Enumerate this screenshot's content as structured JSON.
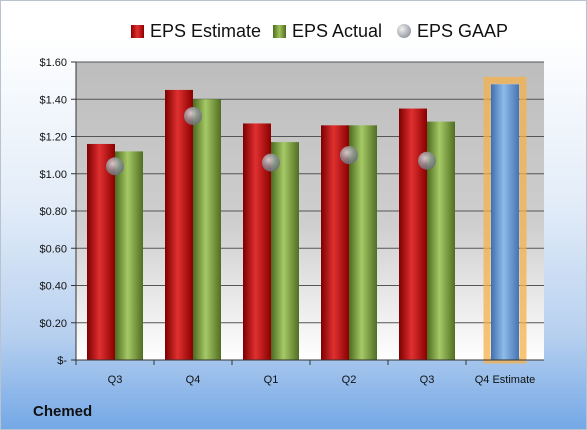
{
  "chart_data": {
    "type": "bar",
    "categories": [
      "Q3",
      "Q4",
      "Q1",
      "Q2",
      "Q3",
      "Q4 Estimate"
    ],
    "series": [
      {
        "name": "EPS Estimate",
        "color": "#c91f1f",
        "values": [
          1.16,
          1.45,
          1.27,
          1.26,
          1.35,
          null
        ]
      },
      {
        "name": "EPS Actual",
        "color": "#8db44c",
        "values": [
          1.12,
          1.4,
          1.17,
          1.26,
          1.28,
          null
        ]
      },
      {
        "name": "EPS GAAP",
        "color": "#a0a4aa",
        "values": [
          1.04,
          1.31,
          1.06,
          1.1,
          1.07,
          null
        ]
      },
      {
        "name": "",
        "color": "#6f9fd8",
        "values": [
          null,
          null,
          null,
          null,
          null,
          1.48
        ]
      }
    ],
    "yticks": [
      "$-",
      "$0.20",
      "$0.40",
      "$0.60",
      "$0.80",
      "$1.00",
      "$1.20",
      "$1.40",
      "$1.60"
    ],
    "ylim": [
      0,
      1.6
    ],
    "grid": true,
    "legend": "top",
    "highlight_color": "#f5b04a"
  },
  "legend": {
    "estimate": "EPS Estimate",
    "actual": "EPS Actual",
    "gaap": "EPS GAAP"
  },
  "company": "Chemed"
}
